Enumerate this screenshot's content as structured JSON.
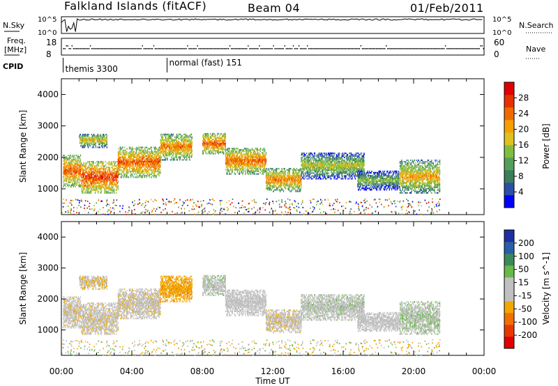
{
  "header": {
    "station": "Falkland Islands (fitACF)",
    "beam": "Beam 04",
    "date": "01/Feb/2011"
  },
  "strips": {
    "nsky_label": "N.Sky",
    "nsearch_label": "N.Search",
    "freq_label_line1": "Freq.",
    "freq_label_line2": "[MHz]",
    "nave_label": "Nave",
    "cpid_label": "CPID",
    "noise_ticks_left": [
      "10^5",
      "10^0"
    ],
    "noise_ticks_right": [
      "10^5",
      "10^0"
    ],
    "freq_ticks": [
      "18",
      "8"
    ],
    "nave_ticks": [
      "60",
      "0"
    ],
    "cpid_segments": [
      {
        "label": "themis 3300",
        "start_hour": 0.1
      },
      {
        "label": "normal (fast) 151",
        "start_hour": 6.0
      }
    ]
  },
  "colors": {
    "power_scale": [
      "#0000ff",
      "#2b4fa6",
      "#3c7d5c",
      "#54a05a",
      "#7fbf3f",
      "#e0c020",
      "#f5a000",
      "#f06a00",
      "#e83000",
      "#e00000"
    ],
    "velocity_scale": [
      "#1f2fa0",
      "#2a5fa8",
      "#3a8a5a",
      "#6ab84a",
      "#c0c0c0",
      "#c0c0c0",
      "#f0a800",
      "#f07000",
      "#e83800",
      "#e00000"
    ]
  },
  "chart_data": [
    {
      "type": "heatmap",
      "x_unit": "hour UT",
      "xlim": [
        0,
        24
      ],
      "xticks": [
        0,
        4,
        8,
        12,
        16,
        20,
        24
      ],
      "xtick_labels": [
        "00:00",
        "04:00",
        "08:00",
        "12:00",
        "16:00",
        "20:00",
        "00:00"
      ],
      "ylabel": "Slant Range [km]",
      "ylim": [
        180,
        4500
      ],
      "yticks": [
        1000,
        2000,
        3000,
        4000
      ],
      "ytick_labels": [
        "1000",
        "2000",
        "3000",
        "4000"
      ],
      "colorbar_label": "Power [dB]",
      "colorbar_ticks": [
        "4",
        "8",
        "12",
        "16",
        "20",
        "24",
        "28"
      ],
      "colorbar_range": [
        0,
        30
      ],
      "grid": false
    },
    {
      "type": "heatmap",
      "x_unit": "hour UT",
      "xlim": [
        0,
        24
      ],
      "xticks": [
        0,
        4,
        8,
        12,
        16,
        20,
        24
      ],
      "xtick_labels": [
        "00:00",
        "04:00",
        "08:00",
        "12:00",
        "16:00",
        "20:00",
        "00:00"
      ],
      "xlabel": "Time UT",
      "ylabel": "Slant Range [km]",
      "ylim": [
        180,
        4500
      ],
      "yticks": [
        1000,
        2000,
        3000,
        4000
      ],
      "ytick_labels": [
        "1000",
        "2000",
        "3000",
        "4000"
      ],
      "colorbar_label": "Velocity [m s^-1]",
      "colorbar_ticks": [
        "200",
        "100",
        "50",
        "15",
        "-15",
        "-50",
        "-100",
        "-200"
      ],
      "colorbar_range": [
        -250,
        250
      ],
      "grid": false
    }
  ],
  "echo_regions": [
    {
      "hours": [
        0.1,
        1.1
      ],
      "range_km": [
        1050,
        2050
      ],
      "power_db": 24,
      "velocity_ms": -5
    },
    {
      "hours": [
        1.1,
        3.2
      ],
      "range_km": [
        850,
        1850
      ],
      "power_db": 26,
      "velocity_ms": -5
    },
    {
      "hours": [
        1.0,
        2.6
      ],
      "range_km": [
        2300,
        2750
      ],
      "power_db": 18,
      "velocity_ms": -10
    },
    {
      "hours": [
        3.2,
        5.6
      ],
      "range_km": [
        1350,
        2300
      ],
      "power_db": 24,
      "velocity_ms": -5
    },
    {
      "hours": [
        5.6,
        7.4
      ],
      "range_km": [
        1900,
        2750
      ],
      "power_db": 22,
      "velocity_ms": -40
    },
    {
      "hours": [
        8.0,
        9.3
      ],
      "range_km": [
        2100,
        2750
      ],
      "power_db": 24,
      "velocity_ms": 5
    },
    {
      "hours": [
        9.3,
        11.6
      ],
      "range_km": [
        1450,
        2300
      ],
      "power_db": 23,
      "velocity_ms": 0
    },
    {
      "hours": [
        11.6,
        13.6
      ],
      "range_km": [
        900,
        1650
      ],
      "power_db": 22,
      "velocity_ms": -5
    },
    {
      "hours": [
        13.6,
        17.2
      ],
      "range_km": [
        1300,
        2150
      ],
      "power_db": 16,
      "velocity_ms": 5
    },
    {
      "hours": [
        16.8,
        19.2
      ],
      "range_km": [
        950,
        1550
      ],
      "power_db": 14,
      "velocity_ms": 0
    },
    {
      "hours": [
        19.2,
        21.5
      ],
      "range_km": [
        850,
        1900
      ],
      "power_db": 20,
      "velocity_ms": 10
    }
  ]
}
